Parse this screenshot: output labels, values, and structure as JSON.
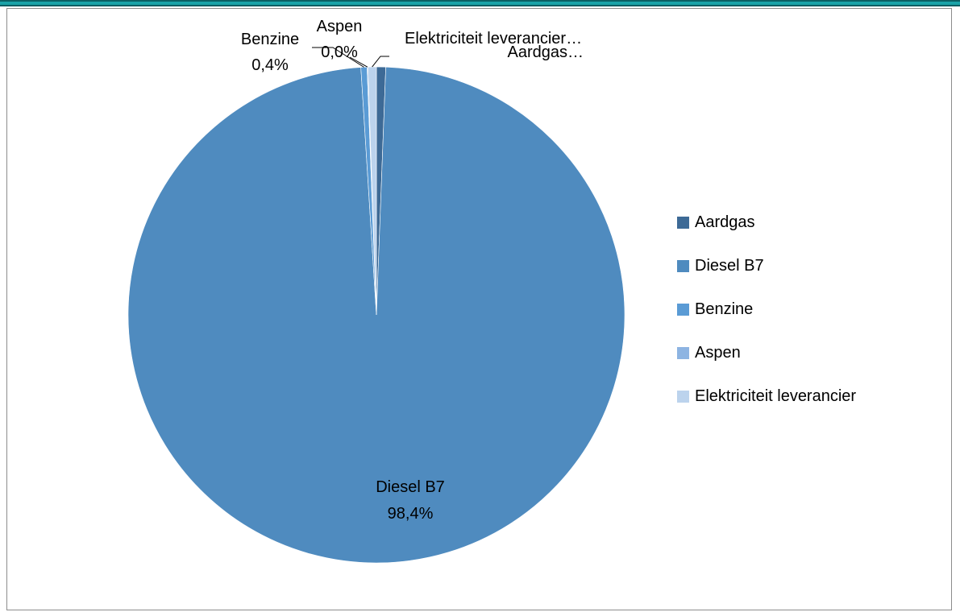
{
  "chart_data": {
    "type": "pie",
    "title": "",
    "slices": [
      {
        "name": "Aardgas",
        "value": 0.6,
        "color": "#3d6a96",
        "label_name": "Aardgas…",
        "label_value": ""
      },
      {
        "name": "Diesel B7",
        "value": 98.4,
        "color": "#4f8bbf",
        "label_name": "Diesel B7",
        "label_value": "98,4%"
      },
      {
        "name": "Benzine",
        "value": 0.4,
        "color": "#5a9bd5",
        "label_name": "Benzine",
        "label_value": "0,4%"
      },
      {
        "name": "Aspen",
        "value": 0.05,
        "color": "#8db4e2",
        "label_name": "Aspen",
        "label_value": "0,0%"
      },
      {
        "name": "Elektriciteit leverancier",
        "value": 0.55,
        "color": "#bcd3ed",
        "label_name": "Elektriciteit leverancier…",
        "label_value": ""
      }
    ],
    "legend_position": "right"
  }
}
